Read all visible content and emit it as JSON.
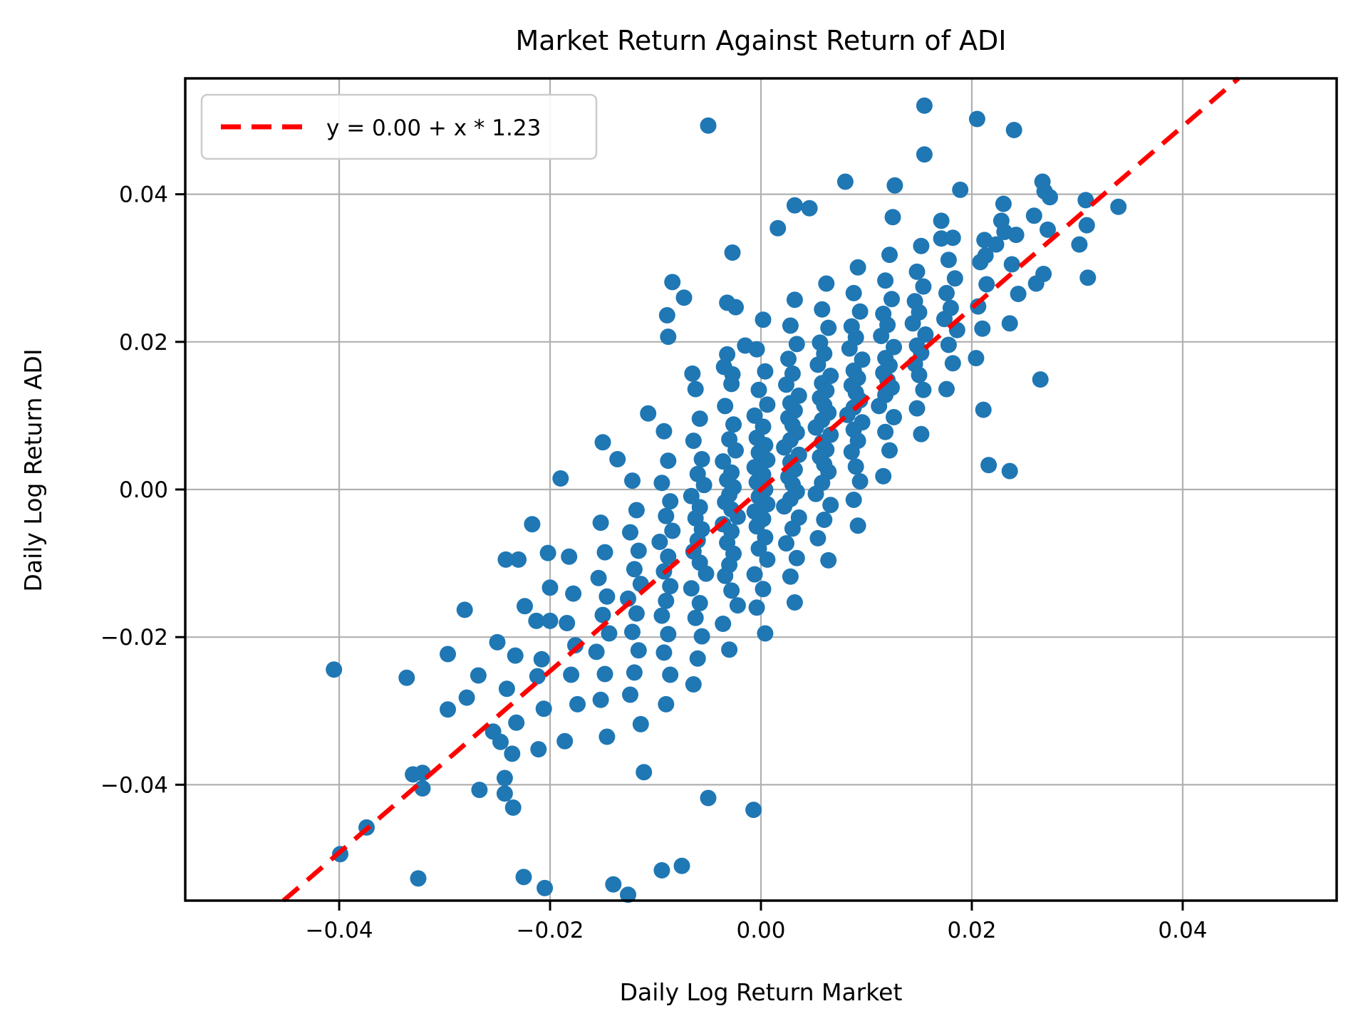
{
  "chart_data": {
    "type": "scatter",
    "title": "Market Return Against Return of ADI",
    "xlabel": "Daily Log Return Market",
    "ylabel": "Daily Log Return ADI",
    "legend": {
      "label": "y = 0.00 + x * 1.23",
      "position": "upper left"
    },
    "xlim": [
      -0.0546,
      0.0546
    ],
    "ylim": [
      -0.0557,
      0.0557
    ],
    "grid": true,
    "x_ticks": [
      {
        "v": -0.04,
        "label": "−0.04"
      },
      {
        "v": -0.02,
        "label": "−0.02"
      },
      {
        "v": 0.0,
        "label": "0.00"
      },
      {
        "v": 0.02,
        "label": "0.02"
      },
      {
        "v": 0.04,
        "label": "0.04"
      }
    ],
    "y_ticks": [
      {
        "v": -0.04,
        "label": "−0.04"
      },
      {
        "v": -0.02,
        "label": "−0.02"
      },
      {
        "v": 0.0,
        "label": "0.00"
      },
      {
        "v": 0.02,
        "label": "0.02"
      },
      {
        "v": 0.04,
        "label": "0.04"
      }
    ],
    "colors": {
      "points": "#1f77b4",
      "line": "#ff0000",
      "grid": "#b0b0b0",
      "spine": "#000000",
      "legend_border": "#cccccc",
      "background": "#ffffff"
    },
    "marker_radius_px": 11.5,
    "regression": {
      "intercept": 0.0,
      "slope": 1.23
    },
    "points": [
      [
        -0.005,
        0.0493
      ],
      [
        0.0155,
        0.052
      ],
      [
        0.0205,
        0.0502
      ],
      [
        0.024,
        0.0487
      ],
      [
        0.0155,
        0.0454
      ],
      [
        0.008,
        0.0417
      ],
      [
        0.0127,
        0.0412
      ],
      [
        0.0032,
        0.0385
      ],
      [
        0.0046,
        0.0381
      ],
      [
        0.0016,
        0.0354
      ],
      [
        0.0125,
        0.0369
      ],
      [
        0.0189,
        0.0406
      ],
      [
        -0.0027,
        0.0321
      ],
      [
        -0.0032,
        0.0253
      ],
      [
        -0.0024,
        0.0247
      ],
      [
        0.0267,
        0.0417
      ],
      [
        0.0269,
        0.0404
      ],
      [
        0.0274,
        0.0396
      ],
      [
        0.0308,
        0.0392
      ],
      [
        0.023,
        0.0387
      ],
      [
        0.0171,
        0.0364
      ],
      [
        0.0171,
        0.034
      ],
      [
        0.0223,
        0.0332
      ],
      [
        0.0213,
        0.0317
      ],
      [
        0.0228,
        0.0364
      ],
      [
        0.0231,
        0.0349
      ],
      [
        0.0259,
        0.0371
      ],
      [
        0.031,
        0.0287
      ],
      [
        0.0265,
        0.0149
      ],
      [
        0.0216,
        0.0033
      ],
      [
        0.0236,
        0.0025
      ],
      [
        0.0211,
        0.0108
      ],
      [
        0.0339,
        0.0383
      ],
      [
        0.0309,
        0.0358
      ],
      [
        0.0261,
        0.0279
      ],
      [
        -0.0405,
        -0.0244
      ],
      [
        -0.0336,
        -0.0255
      ],
      [
        -0.0297,
        -0.0223
      ],
      [
        -0.0297,
        -0.0298
      ],
      [
        -0.0281,
        -0.0163
      ],
      [
        -0.025,
        -0.0207
      ],
      [
        -0.0254,
        -0.0328
      ],
      [
        -0.0247,
        -0.0342
      ],
      [
        -0.0236,
        -0.0358
      ],
      [
        -0.033,
        -0.0386
      ],
      [
        -0.0267,
        -0.0407
      ],
      [
        -0.0321,
        -0.0384
      ],
      [
        -0.0321,
        -0.0405
      ],
      [
        -0.0374,
        -0.0458
      ],
      [
        -0.0399,
        -0.0494
      ],
      [
        -0.0325,
        -0.0527
      ],
      [
        -0.0279,
        -0.0282
      ],
      [
        -0.0232,
        -0.0316
      ],
      [
        -0.0211,
        -0.0352
      ],
      [
        -0.0243,
        -0.0391
      ],
      [
        -0.0243,
        -0.0412
      ],
      [
        -0.0235,
        -0.0431
      ],
      [
        -0.0217,
        -0.0047
      ],
      [
        -0.0242,
        -0.0095
      ],
      [
        -0.023,
        -0.0095
      ],
      [
        -0.0202,
        -0.0086
      ],
      [
        -0.02,
        -0.0133
      ],
      [
        -0.0224,
        -0.0158
      ],
      [
        -0.0213,
        -0.0178
      ],
      [
        -0.02,
        -0.0178
      ],
      [
        -0.019,
        0.0015
      ],
      [
        -0.0225,
        -0.0525
      ],
      [
        -0.0205,
        -0.054
      ],
      [
        -0.014,
        -0.0535
      ],
      [
        -0.0126,
        -0.0549
      ],
      [
        -0.0075,
        -0.051
      ],
      [
        -0.0094,
        -0.0516
      ],
      [
        -0.0007,
        -0.0434
      ],
      [
        -0.005,
        -0.0418
      ],
      [
        -0.0111,
        -0.0383
      ],
      [
        -0.015,
        0.0064
      ],
      [
        -0.0136,
        0.0041
      ],
      [
        -0.0107,
        0.0103
      ],
      [
        -0.0089,
        0.0236
      ],
      [
        -0.0088,
        0.0207
      ],
      [
        -0.0073,
        0.026
      ],
      [
        -0.0084,
        0.0281
      ],
      [
        -0.0065,
        0.0157
      ],
      [
        -0.0035,
        0.0166
      ],
      [
        -0.0027,
        0.0156
      ],
      [
        -0.0015,
        0.0195
      ],
      [
        -0.0268,
        -0.0252
      ],
      [
        -0.0241,
        -0.027
      ],
      [
        -0.0233,
        -0.0225
      ],
      [
        -0.0208,
        -0.023
      ],
      [
        -0.0212,
        -0.0253
      ],
      [
        -0.0206,
        -0.0297
      ],
      [
        -0.0182,
        -0.0091
      ],
      [
        -0.0178,
        -0.0141
      ],
      [
        -0.0184,
        -0.0181
      ],
      [
        -0.0176,
        -0.0211
      ],
      [
        -0.018,
        -0.0251
      ],
      [
        -0.0174,
        -0.0291
      ],
      [
        -0.0186,
        -0.0341
      ],
      [
        -0.0152,
        -0.0045
      ],
      [
        -0.0148,
        -0.0085
      ],
      [
        -0.0154,
        -0.012
      ],
      [
        -0.0146,
        -0.0145
      ],
      [
        -0.015,
        -0.017
      ],
      [
        -0.0144,
        -0.0195
      ],
      [
        -0.0156,
        -0.022
      ],
      [
        -0.0148,
        -0.025
      ],
      [
        -0.0152,
        -0.0285
      ],
      [
        -0.0146,
        -0.0335
      ],
      [
        -0.0122,
        0.0012
      ],
      [
        -0.0118,
        -0.0028
      ],
      [
        -0.0124,
        -0.0058
      ],
      [
        -0.0116,
        -0.0083
      ],
      [
        -0.012,
        -0.0108
      ],
      [
        -0.0114,
        -0.0128
      ],
      [
        -0.0126,
        -0.0148
      ],
      [
        -0.0118,
        -0.0168
      ],
      [
        -0.0122,
        -0.0193
      ],
      [
        -0.0116,
        -0.0218
      ],
      [
        -0.012,
        -0.0248
      ],
      [
        -0.0124,
        -0.0278
      ],
      [
        -0.0114,
        -0.0318
      ],
      [
        -0.0092,
        0.0079
      ],
      [
        -0.0088,
        0.0039
      ],
      [
        -0.0094,
        0.0009
      ],
      [
        -0.0086,
        -0.0016
      ],
      [
        -0.009,
        -0.0036
      ],
      [
        -0.0084,
        -0.0056
      ],
      [
        -0.0096,
        -0.0071
      ],
      [
        -0.0088,
        -0.0091
      ],
      [
        -0.0092,
        -0.0111
      ],
      [
        -0.0086,
        -0.0131
      ],
      [
        -0.009,
        -0.0151
      ],
      [
        -0.0094,
        -0.0171
      ],
      [
        -0.0088,
        -0.0196
      ],
      [
        -0.0092,
        -0.0221
      ],
      [
        -0.0086,
        -0.0251
      ],
      [
        -0.009,
        -0.0291
      ],
      [
        -0.0062,
        0.0136
      ],
      [
        -0.0058,
        0.0096
      ],
      [
        -0.0064,
        0.0066
      ],
      [
        -0.0056,
        0.0041
      ],
      [
        -0.006,
        0.0021
      ],
      [
        -0.0054,
        0.0006
      ],
      [
        -0.0066,
        -0.0009
      ],
      [
        -0.0058,
        -0.0024
      ],
      [
        -0.0062,
        -0.0039
      ],
      [
        -0.0056,
        -0.0054
      ],
      [
        -0.006,
        -0.0069
      ],
      [
        -0.0064,
        -0.0084
      ],
      [
        -0.0058,
        -0.0099
      ],
      [
        -0.0052,
        -0.0114
      ],
      [
        -0.0066,
        -0.0134
      ],
      [
        -0.0058,
        -0.0154
      ],
      [
        -0.0062,
        -0.0174
      ],
      [
        -0.0056,
        -0.0199
      ],
      [
        -0.006,
        -0.0229
      ],
      [
        -0.0064,
        -0.0264
      ],
      [
        -0.0032,
        0.0183
      ],
      [
        -0.0028,
        0.0143
      ],
      [
        -0.0034,
        0.0113
      ],
      [
        -0.0026,
        0.0088
      ],
      [
        -0.003,
        0.0068
      ],
      [
        -0.0024,
        0.0053
      ],
      [
        -0.0036,
        0.0038
      ],
      [
        -0.0028,
        0.0023
      ],
      [
        -0.0032,
        0.0013
      ],
      [
        -0.0026,
        0.0003
      ],
      [
        -0.003,
        -0.0007
      ],
      [
        -0.0034,
        -0.0017
      ],
      [
        -0.0028,
        -0.0027
      ],
      [
        -0.0022,
        -0.0037
      ],
      [
        -0.0036,
        -0.0047
      ],
      [
        -0.0028,
        -0.0057
      ],
      [
        -0.0032,
        -0.0072
      ],
      [
        -0.0026,
        -0.0087
      ],
      [
        -0.003,
        -0.0102
      ],
      [
        -0.0034,
        -0.0117
      ],
      [
        -0.0028,
        -0.0137
      ],
      [
        -0.0022,
        -0.0157
      ],
      [
        -0.0036,
        -0.0182
      ],
      [
        -0.003,
        -0.0217
      ],
      [
        0.0002,
        0.023
      ],
      [
        -0.0004,
        0.019
      ],
      [
        0.0004,
        0.016
      ],
      [
        -0.0002,
        0.0135
      ],
      [
        0.0006,
        0.0115
      ],
      [
        -0.0006,
        0.01
      ],
      [
        0.0002,
        0.0085
      ],
      [
        -0.0004,
        0.007
      ],
      [
        0.0004,
        0.006
      ],
      [
        -0.0002,
        0.005
      ],
      [
        0.0006,
        0.004
      ],
      [
        -0.0006,
        0.003
      ],
      [
        0.0002,
        0.002
      ],
      [
        -0.0004,
        0.001
      ],
      [
        0.0004,
        0.0
      ],
      [
        -0.0002,
        -0.001
      ],
      [
        0.0006,
        -0.002
      ],
      [
        -0.0006,
        -0.003
      ],
      [
        0.0002,
        -0.004
      ],
      [
        -0.0004,
        -0.005
      ],
      [
        0.0004,
        -0.0065
      ],
      [
        -0.0002,
        -0.008
      ],
      [
        0.0006,
        -0.0095
      ],
      [
        -0.0006,
        -0.0115
      ],
      [
        0.0002,
        -0.0135
      ],
      [
        -0.0004,
        -0.016
      ],
      [
        0.0004,
        -0.0195
      ],
      [
        0.0032,
        0.0257
      ],
      [
        0.0028,
        0.0222
      ],
      [
        0.0034,
        0.0197
      ],
      [
        0.0026,
        0.0177
      ],
      [
        0.003,
        0.0157
      ],
      [
        0.0024,
        0.0142
      ],
      [
        0.0036,
        0.0127
      ],
      [
        0.0028,
        0.0117
      ],
      [
        0.0032,
        0.0107
      ],
      [
        0.0026,
        0.0097
      ],
      [
        0.003,
        0.0087
      ],
      [
        0.0034,
        0.0077
      ],
      [
        0.0028,
        0.0067
      ],
      [
        0.0022,
        0.0057
      ],
      [
        0.0036,
        0.0047
      ],
      [
        0.0028,
        0.0037
      ],
      [
        0.0032,
        0.0027
      ],
      [
        0.0026,
        0.0017
      ],
      [
        0.003,
        0.0007
      ],
      [
        0.0034,
        -0.0003
      ],
      [
        0.0028,
        -0.0013
      ],
      [
        0.0022,
        -0.0023
      ],
      [
        0.0036,
        -0.0038
      ],
      [
        0.003,
        -0.0053
      ],
      [
        0.0024,
        -0.0073
      ],
      [
        0.0034,
        -0.0093
      ],
      [
        0.0028,
        -0.0118
      ],
      [
        0.0032,
        -0.0153
      ],
      [
        0.0062,
        0.0279
      ],
      [
        0.0058,
        0.0244
      ],
      [
        0.0064,
        0.0219
      ],
      [
        0.0056,
        0.0199
      ],
      [
        0.006,
        0.0184
      ],
      [
        0.0054,
        0.0169
      ],
      [
        0.0066,
        0.0154
      ],
      [
        0.0058,
        0.0144
      ],
      [
        0.0062,
        0.0134
      ],
      [
        0.0056,
        0.0124
      ],
      [
        0.006,
        0.0114
      ],
      [
        0.0064,
        0.0104
      ],
      [
        0.0058,
        0.0094
      ],
      [
        0.0052,
        0.0084
      ],
      [
        0.0066,
        0.0074
      ],
      [
        0.0058,
        0.0064
      ],
      [
        0.0062,
        0.0054
      ],
      [
        0.0056,
        0.0044
      ],
      [
        0.006,
        0.0034
      ],
      [
        0.0064,
        0.0024
      ],
      [
        0.0058,
        0.0009
      ],
      [
        0.0052,
        -0.0006
      ],
      [
        0.0066,
        -0.0021
      ],
      [
        0.006,
        -0.0041
      ],
      [
        0.0054,
        -0.0066
      ],
      [
        0.0064,
        -0.0096
      ],
      [
        0.0092,
        0.0301
      ],
      [
        0.0088,
        0.0266
      ],
      [
        0.0094,
        0.0241
      ],
      [
        0.0086,
        0.0221
      ],
      [
        0.009,
        0.0206
      ],
      [
        0.0084,
        0.0191
      ],
      [
        0.0096,
        0.0176
      ],
      [
        0.0088,
        0.0161
      ],
      [
        0.0092,
        0.0151
      ],
      [
        0.0086,
        0.0141
      ],
      [
        0.009,
        0.0131
      ],
      [
        0.0094,
        0.0121
      ],
      [
        0.0088,
        0.0111
      ],
      [
        0.0082,
        0.0101
      ],
      [
        0.0096,
        0.0091
      ],
      [
        0.0088,
        0.0081
      ],
      [
        0.0092,
        0.0066
      ],
      [
        0.0086,
        0.0051
      ],
      [
        0.009,
        0.0031
      ],
      [
        0.0094,
        0.0011
      ],
      [
        0.0088,
        -0.0014
      ],
      [
        0.0092,
        -0.0049
      ],
      [
        0.0122,
        0.0318
      ],
      [
        0.0118,
        0.0283
      ],
      [
        0.0124,
        0.0258
      ],
      [
        0.0116,
        0.0238
      ],
      [
        0.012,
        0.0223
      ],
      [
        0.0114,
        0.0208
      ],
      [
        0.0126,
        0.0193
      ],
      [
        0.0118,
        0.0178
      ],
      [
        0.0122,
        0.0168
      ],
      [
        0.0116,
        0.0158
      ],
      [
        0.012,
        0.0148
      ],
      [
        0.0124,
        0.0138
      ],
      [
        0.0118,
        0.0128
      ],
      [
        0.0112,
        0.0113
      ],
      [
        0.0126,
        0.0098
      ],
      [
        0.0118,
        0.0078
      ],
      [
        0.0122,
        0.0053
      ],
      [
        0.0116,
        0.0018
      ],
      [
        0.0152,
        0.033
      ],
      [
        0.0148,
        0.0295
      ],
      [
        0.0154,
        0.0275
      ],
      [
        0.0146,
        0.0255
      ],
      [
        0.015,
        0.024
      ],
      [
        0.0144,
        0.0225
      ],
      [
        0.0156,
        0.021
      ],
      [
        0.0148,
        0.0195
      ],
      [
        0.0152,
        0.0185
      ],
      [
        0.0146,
        0.017
      ],
      [
        0.015,
        0.0155
      ],
      [
        0.0154,
        0.0135
      ],
      [
        0.0148,
        0.011
      ],
      [
        0.0152,
        0.0075
      ],
      [
        0.0182,
        0.0341
      ],
      [
        0.0178,
        0.0311
      ],
      [
        0.0184,
        0.0286
      ],
      [
        0.0176,
        0.0266
      ],
      [
        0.018,
        0.0246
      ],
      [
        0.0174,
        0.0231
      ],
      [
        0.0186,
        0.0216
      ],
      [
        0.0178,
        0.0196
      ],
      [
        0.0182,
        0.0171
      ],
      [
        0.0176,
        0.0136
      ],
      [
        0.0212,
        0.0338
      ],
      [
        0.0208,
        0.0308
      ],
      [
        0.0214,
        0.0278
      ],
      [
        0.0206,
        0.0248
      ],
      [
        0.021,
        0.0218
      ],
      [
        0.0204,
        0.0178
      ],
      [
        0.0242,
        0.0345
      ],
      [
        0.0238,
        0.0305
      ],
      [
        0.0244,
        0.0265
      ],
      [
        0.0236,
        0.0225
      ],
      [
        0.0272,
        0.0352
      ],
      [
        0.0268,
        0.0292
      ],
      [
        0.0302,
        0.0332
      ]
    ]
  }
}
